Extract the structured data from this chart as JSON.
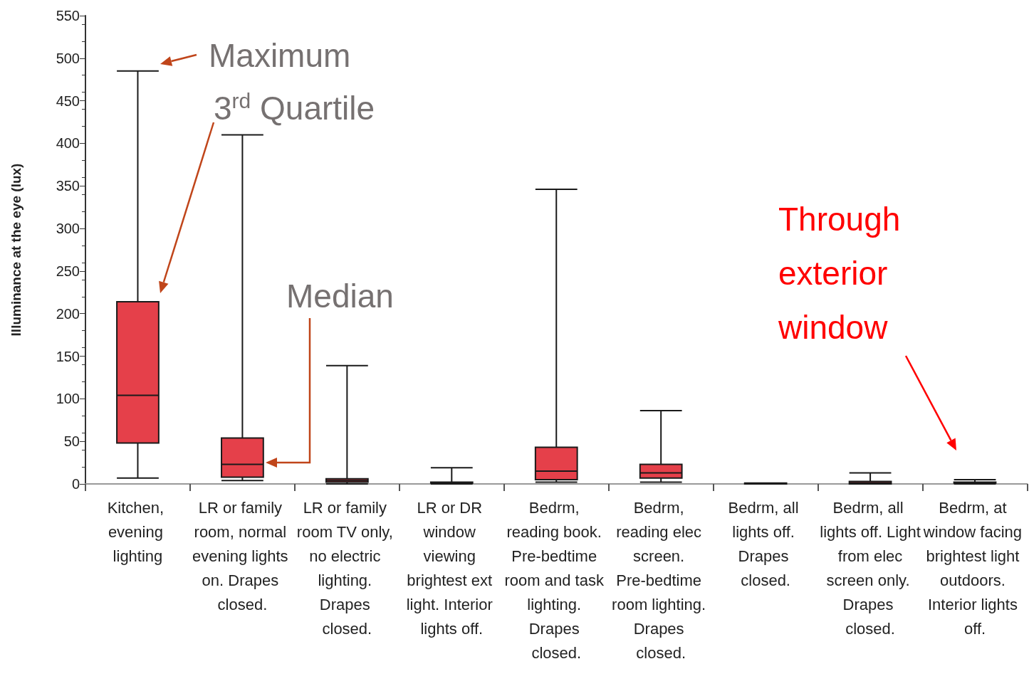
{
  "chart_data": {
    "type": "box",
    "ylabel": "Illuminance at the eye (lux)",
    "categories": [
      "Kitchen, evening lighting",
      "LR or family room, normal evening lights on. Drapes closed.",
      "LR or family room TV only, no electric lighting. Drapes closed.",
      "LR or DR window viewing brightest ext light. Interior lights off.",
      "Bedrm, reading book. Pre-bedtime room and task lighting. Drapes closed.",
      "Bedrm, reading elec screen. Pre-bedtime room lighting. Drapes closed.",
      "Bedrm, all lights off. Drapes closed.",
      "Bedrm, all lights off. Light from elec screen only. Drapes closed.",
      "Bedrm, at window facing brightest light outdoors. Interior lights off."
    ],
    "series": [
      {
        "color": "#e5404a",
        "boxes": [
          {
            "low": 7,
            "q1": 48,
            "median": 104,
            "q3": 214,
            "high": 485
          },
          {
            "low": 4,
            "q1": 8,
            "median": 23,
            "q3": 54,
            "high": 410
          },
          {
            "low": 0,
            "q1": 2,
            "median": 4,
            "q3": 6,
            "high": 139
          },
          {
            "low": 0,
            "q1": 1,
            "median": 1,
            "q3": 2,
            "high": 19
          },
          {
            "low": 2,
            "q1": 5,
            "median": 15,
            "q3": 43,
            "high": 346
          },
          {
            "low": 2,
            "q1": 7,
            "median": 13,
            "q3": 23,
            "high": 86
          },
          {
            "low": 0,
            "q1": 0,
            "median": 1,
            "q3": 1,
            "high": 1
          },
          {
            "low": 0,
            "q1": 0,
            "median": 1,
            "q3": 3,
            "high": 13
          },
          {
            "low": 0,
            "q1": 1,
            "median": 1,
            "q3": 2,
            "high": 5
          }
        ]
      }
    ],
    "ylim": [
      0,
      550
    ],
    "yticks": [
      0,
      50,
      100,
      150,
      200,
      250,
      300,
      350,
      400,
      450,
      500,
      550
    ],
    "annotations": [
      "Maximum",
      "3$^{rd}$ Quartile",
      "Median",
      "Through exterior window"
    ]
  }
}
